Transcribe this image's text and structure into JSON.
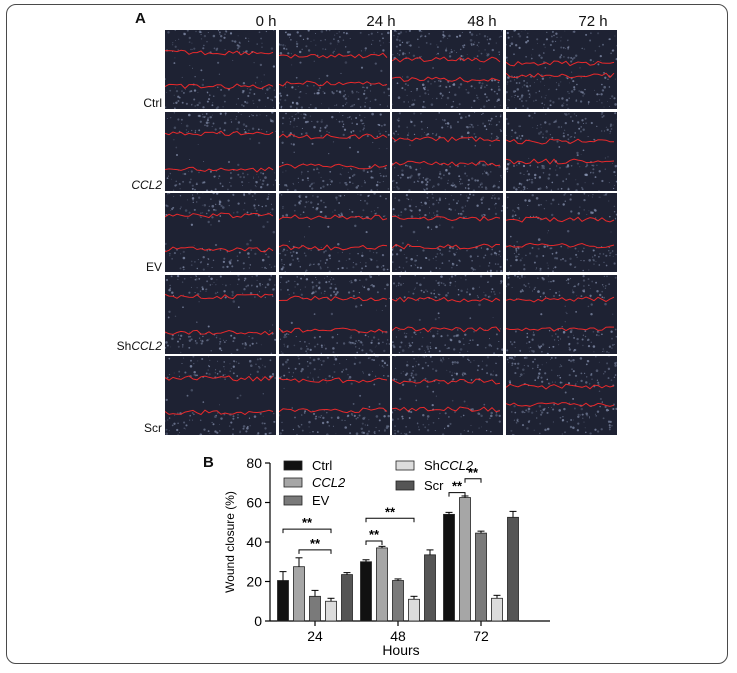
{
  "panel_a": {
    "letter": "A",
    "time_labels": [
      "0 h",
      "24 h",
      "48 h",
      "72 h"
    ],
    "row_labels": [
      {
        "text": "Ctrl",
        "italic": false
      },
      {
        "text": "CCL2",
        "italic": true
      },
      {
        "text": "EV",
        "italic": false
      },
      {
        "text": "ShCCL2",
        "prefix": "Sh",
        "italic_part": "CCL2"
      },
      {
        "text": "Scr",
        "italic": false
      }
    ],
    "colors": {
      "background": "#1e2233",
      "cell_texture": "#8e9ab8",
      "wound_edge": "#ff2a2a"
    }
  },
  "panel_b": {
    "letter": "B",
    "significance_marker": "**"
  },
  "chart_data": {
    "type": "bar",
    "title": "",
    "xlabel": "Hours",
    "ylabel": "Wound closure (%)",
    "ylim": [
      0,
      80
    ],
    "yticks": [
      0,
      20,
      40,
      60,
      80
    ],
    "categories": [
      "24",
      "48",
      "72"
    ],
    "legend_position": "top-right",
    "series": [
      {
        "name": "Ctrl",
        "color": "#111111",
        "values": [
          20.5,
          30,
          54
        ],
        "errors": [
          4.5,
          1.0,
          1.0
        ]
      },
      {
        "name": "CCL2",
        "name_italic": true,
        "color": "#a6a6a6",
        "values": [
          27.5,
          37,
          62.5
        ],
        "errors": [
          4.5,
          0.8,
          0.8
        ]
      },
      {
        "name": "EV",
        "color": "#7a7a7a",
        "values": [
          12.5,
          20.5,
          44.5
        ],
        "errors": [
          3.0,
          0.8,
          1.0
        ]
      },
      {
        "name": "ShCCL2",
        "name_prefix": "Sh",
        "name_italic_part": "CCL2",
        "color": "#dcdcdc",
        "values": [
          10,
          11,
          11.5
        ],
        "errors": [
          1.5,
          1.5,
          1.5
        ]
      },
      {
        "name": "Scr",
        "color": "#555555",
        "values": [
          23.5,
          33.5,
          52.5
        ],
        "errors": [
          1.0,
          2.5,
          3.0
        ]
      }
    ],
    "significance": [
      {
        "group": 0,
        "from_series": 0,
        "to_series": 3,
        "label": "**",
        "y": 46.5
      },
      {
        "group": 0,
        "from_series": 1,
        "to_series": 3,
        "label": "**",
        "y": 36
      },
      {
        "group": 1,
        "from_series": 0,
        "to_series": 1,
        "label": "**",
        "y": 40.5
      },
      {
        "group": 1,
        "from_series": 0,
        "to_series": 3,
        "label": "**",
        "y": 52
      },
      {
        "group": 2,
        "from_series": 0,
        "to_series": 1,
        "label": "**",
        "y": 65
      },
      {
        "group": 2,
        "from_series": 1,
        "to_series": 2,
        "label": "**",
        "y": 72
      }
    ]
  }
}
